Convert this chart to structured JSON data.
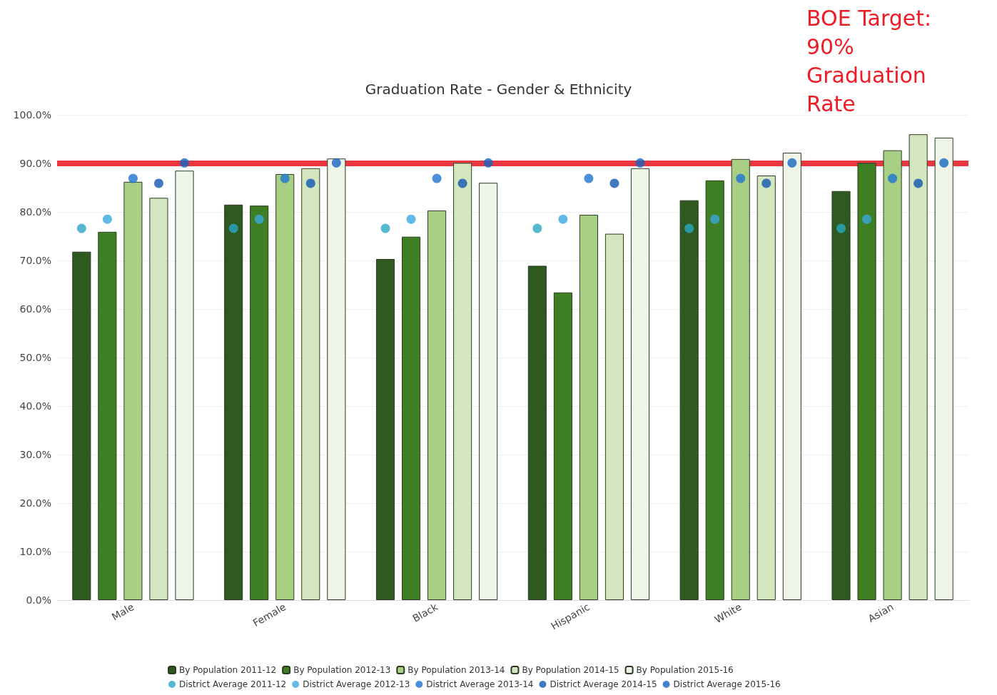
{
  "chart_data": {
    "type": "bar",
    "title": "Graduation Rate - Gender & Ethnicity",
    "categories": [
      "Male",
      "Female",
      "Black",
      "Hispanic",
      "White",
      "Asian"
    ],
    "series": [
      {
        "name": "By Population 2011-12",
        "color": "#2f5a1f",
        "values": [
          71.8,
          81.5,
          70.3,
          68.9,
          82.4,
          84.3
        ]
      },
      {
        "name": "By Population 2012-13",
        "color": "#3f7f24",
        "values": [
          75.9,
          81.3,
          74.9,
          63.4,
          86.5,
          90.1
        ]
      },
      {
        "name": "By Population 2013-14",
        "color": "#a9cf84",
        "values": [
          86.2,
          87.8,
          80.3,
          79.4,
          90.9,
          92.7
        ]
      },
      {
        "name": "By Population 2014-15",
        "color": "#d4e6bf",
        "values": [
          82.9,
          89.0,
          90.1,
          75.5,
          87.5,
          96.0
        ]
      },
      {
        "name": "By Population 2015-16",
        "color": "#eef5e8",
        "values": [
          88.5,
          91.0,
          86.0,
          89.0,
          92.2,
          95.3
        ]
      },
      {
        "name": "District Average 2011-12",
        "type": "scatter",
        "color": "#2aa6c4",
        "x": [
          "Male",
          "Female",
          "Black",
          "Hispanic",
          "White",
          "Asian"
        ],
        "values": [
          76.6,
          76.6,
          76.6,
          76.6,
          76.6,
          76.6
        ]
      },
      {
        "name": "District Average 2012-13",
        "type": "scatter",
        "color": "#3aa9e0",
        "x": [
          "Male",
          "Female",
          "Black",
          "Hispanic",
          "White",
          "Asian"
        ],
        "values": [
          78.5,
          78.5,
          78.5,
          78.5,
          78.5,
          78.5
        ]
      },
      {
        "name": "District Average 2013-14",
        "type": "scatter",
        "color": "#1b74d0",
        "x": [
          "Male",
          "Female",
          "Black",
          "Hispanic",
          "White",
          "Asian"
        ],
        "values": [
          86.9,
          86.9,
          86.9,
          86.9,
          86.9,
          86.9
        ]
      },
      {
        "name": "District Average 2014-15",
        "type": "scatter",
        "color": "#1057b0",
        "x": [
          "Male",
          "Female",
          "Black",
          "Hispanic",
          "White",
          "Asian"
        ],
        "values": [
          85.9,
          85.9,
          85.9,
          85.9,
          85.9,
          85.9
        ]
      },
      {
        "name": "District Average 2015-16",
        "type": "scatter",
        "color": "#1565c0",
        "x": [
          "Male",
          "Female",
          "Black",
          "Hispanic",
          "White",
          "Asian"
        ],
        "values": [
          90.1,
          90.1,
          90.1,
          90.1,
          90.1,
          90.1
        ]
      }
    ],
    "ylim": [
      0,
      100
    ],
    "yticks": [
      {
        "value": 0,
        "label": "0.0%"
      },
      {
        "value": 10,
        "label": "10.0%"
      },
      {
        "value": 20,
        "label": "20.0%"
      },
      {
        "value": 30,
        "label": "30.0%"
      },
      {
        "value": 40,
        "label": "40.0%"
      },
      {
        "value": 50,
        "label": "50.0%"
      },
      {
        "value": 60,
        "label": "60.0%"
      },
      {
        "value": 70,
        "label": "70.0%"
      },
      {
        "value": 80,
        "label": "80.0%"
      },
      {
        "value": 90,
        "label": "90.0%"
      },
      {
        "value": 100,
        "label": "100.0%"
      }
    ],
    "ref_lines": [
      {
        "axis": "y",
        "value": 90,
        "color": "#e8202a",
        "line_style": "solid"
      }
    ],
    "annotations": [
      "BOE Target: 90% Graduation Rate"
    ],
    "grid": "y",
    "legend": "bottom",
    "marker": "circle"
  }
}
